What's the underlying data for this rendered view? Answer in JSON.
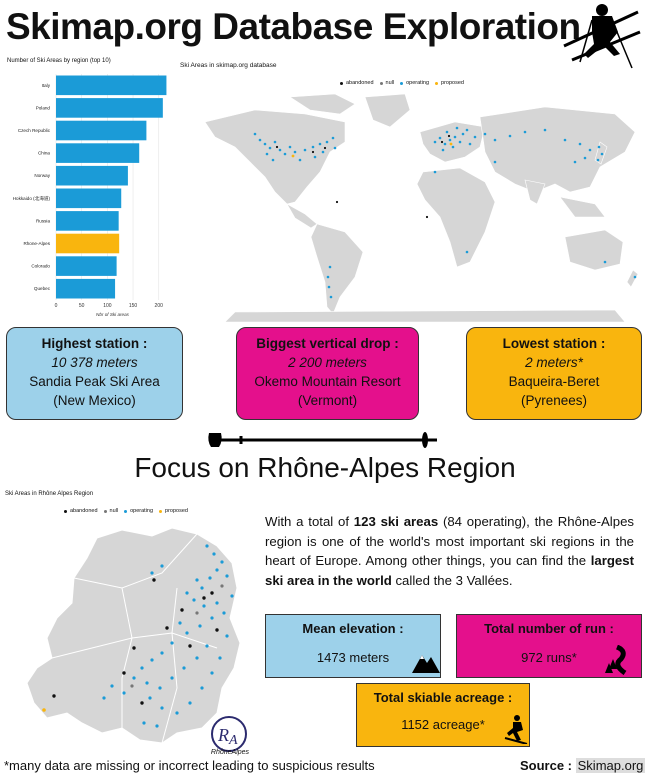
{
  "header": {
    "title": "Skimap.org Database Exploration",
    "skier_icon": "skier-icon"
  },
  "bar_chart": {
    "title": "Number of Ski Areas by region (top 10)",
    "xlabel": "Nbr of Ski areas",
    "categories": [
      "Italy",
      "Poland",
      "Czech Republic",
      "China",
      "Norway",
      "Hokkaido (北海道)",
      "Russia",
      "Rhone-Alpes",
      "Colorado",
      "Quebec"
    ],
    "highlight": "Rhone-Alpes",
    "values": [
      215,
      208,
      176,
      162,
      140,
      127,
      122,
      123,
      118,
      115
    ],
    "ticks": [
      "0",
      "50",
      "100",
      "150",
      "200"
    ],
    "bar_color": "#1b9bd7",
    "highlight_color": "#f9b50e"
  },
  "world_map": {
    "title": "Ski Areas in skimap.org database",
    "legend": [
      {
        "label": "abandoned",
        "color": "#111111"
      },
      {
        "label": "null",
        "color": "#777777"
      },
      {
        "label": "operating",
        "color": "#1b9bd7"
      },
      {
        "label": "proposed",
        "color": "#f9b50e"
      }
    ]
  },
  "stats": {
    "highest": {
      "title": "Highest station :",
      "value": "10 378 meters",
      "name": "Sandia Peak Ski Area",
      "place": "(New Mexico)"
    },
    "vertical": {
      "title": "Biggest vertical drop :",
      "value": "2 200 meters",
      "name": "Okemo Mountain Resort",
      "place": "(Vermont)"
    },
    "lowest": {
      "title": "Lowest station :",
      "value": "2 meters*",
      "name": "Baqueira-Beret",
      "place": "(Pyrenees)"
    }
  },
  "focus": {
    "title": "Focus on Rhône-Alpes Region"
  },
  "region_map": {
    "title": "Ski Areas in Rhône Alpes Region",
    "legend": [
      {
        "label": "abandoned",
        "color": "#111111"
      },
      {
        "label": "null",
        "color": "#777777"
      },
      {
        "label": "operating",
        "color": "#1b9bd7"
      },
      {
        "label": "proposed",
        "color": "#f9b50e"
      }
    ],
    "logo_text": "RhôneAlpes"
  },
  "paragraph": {
    "p1": "With a total of ",
    "b1": "123 ski areas",
    "p2": " (84 operating), the Rhône-Alpes region is one of the world's most important ski regions in the heart of Europe. Among other things, you can find the ",
    "b2": "largest ski area in the world",
    "p3": " called the 3 Vallées."
  },
  "summary": {
    "elevation": {
      "title": "Mean elevation :",
      "value": "1473 meters"
    },
    "runs": {
      "title": "Total number of run :",
      "value": "972 runs*"
    },
    "acreage": {
      "title": "Total skiable acreage :",
      "value": "1152 acreage*"
    }
  },
  "footer": {
    "note": "*many data are missing or incorrect leading to suspicious results",
    "source_label": "Source :",
    "source_value": "Skimap.org"
  }
}
